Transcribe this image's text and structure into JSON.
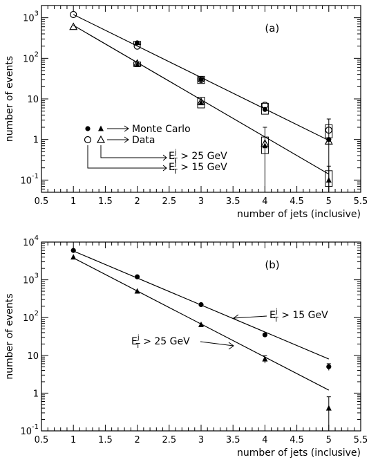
{
  "chart_data": [
    {
      "type": "scatter",
      "panel_label": "(a)",
      "xlabel": "number of jets (inclusive)",
      "ylabel": "number of events",
      "xlim": [
        0.5,
        5.5
      ],
      "ylim": [
        0.05,
        2000
      ],
      "yscale": "log",
      "x_ticks": [
        "0.5",
        "1",
        "1.5",
        "2",
        "2.5",
        "3",
        "3.5",
        "4",
        "4.5",
        "5",
        "5.5"
      ],
      "y_ticks": [
        {
          "base": "10",
          "exp": "-1"
        },
        {
          "base": "1",
          "exp": ""
        },
        {
          "base": "10",
          "exp": ""
        },
        {
          "base": "10",
          "exp": "2"
        },
        {
          "base": "10",
          "exp": "3"
        }
      ],
      "legend": {
        "monte_carlo": "Monte Carlo",
        "data": "Data",
        "et_main": "E",
        "et_sub": "T",
        "et_sup": "j",
        "cut_25": "> 25 GeV",
        "cut_15": "> 15 GeV"
      },
      "series": [
        {
          "marker": "open-circle",
          "x": [
            1,
            2,
            3,
            4,
            5
          ],
          "y": [
            1200,
            200,
            30,
            7,
            1.7
          ]
        },
        {
          "marker": "open-triangle",
          "x": [
            1,
            2,
            3,
            4,
            5
          ],
          "y": [
            600,
            75,
            8.5,
            0.8,
            0.9
          ]
        },
        {
          "marker": "filled-circle",
          "x": [
            2,
            3,
            4,
            5
          ],
          "y": [
            240,
            30,
            5.5,
            1.0
          ]
        },
        {
          "marker": "filled-triangle",
          "x": [
            2,
            3,
            4,
            5
          ],
          "y": [
            70,
            8,
            0.7,
            0.1
          ]
        }
      ],
      "fit_lines": [
        {
          "x": [
            1,
            5
          ],
          "y": [
            1200,
            0.95
          ]
        },
        {
          "x": [
            1,
            5
          ],
          "y": [
            650,
            0.14
          ]
        }
      ]
    },
    {
      "type": "scatter",
      "panel_label": "(b)",
      "xlabel": "number of jets (inclusive)",
      "ylabel": "number of events",
      "xlim": [
        0.5,
        5.5
      ],
      "ylim": [
        0.1,
        10000
      ],
      "yscale": "log",
      "x_ticks": [
        "0.5",
        "1",
        "1.5",
        "2",
        "2.5",
        "3",
        "3.5",
        "4",
        "4.5",
        "5",
        "5.5"
      ],
      "y_ticks": [
        {
          "base": "10",
          "exp": "-1"
        },
        {
          "base": "1",
          "exp": ""
        },
        {
          "base": "10",
          "exp": ""
        },
        {
          "base": "10",
          "exp": "2"
        },
        {
          "base": "10",
          "exp": "3"
        },
        {
          "base": "10",
          "exp": "4"
        }
      ],
      "annotations": [
        {
          "main": "E",
          "sub": "T",
          "sup": "j",
          "text": "> 15 GeV"
        },
        {
          "main": "E",
          "sub": "T",
          "sup": "j",
          "text": "> 25 GeV"
        }
      ],
      "series": [
        {
          "marker": "filled-circle",
          "x": [
            1,
            2,
            3,
            4,
            5
          ],
          "y": [
            6000,
            1200,
            220,
            35,
            5
          ],
          "err": [
            0,
            0,
            0,
            0,
            1
          ]
        },
        {
          "marker": "filled-triangle",
          "x": [
            1,
            2,
            3,
            4,
            5
          ],
          "y": [
            4000,
            500,
            65,
            8,
            0.4
          ],
          "err": [
            0,
            0,
            0,
            1.8,
            0.4
          ]
        }
      ],
      "fit_lines": [
        {
          "x": [
            1,
            5
          ],
          "y": [
            5800,
            8
          ]
        },
        {
          "x": [
            1,
            5
          ],
          "y": [
            3800,
            1.2
          ]
        }
      ]
    }
  ]
}
